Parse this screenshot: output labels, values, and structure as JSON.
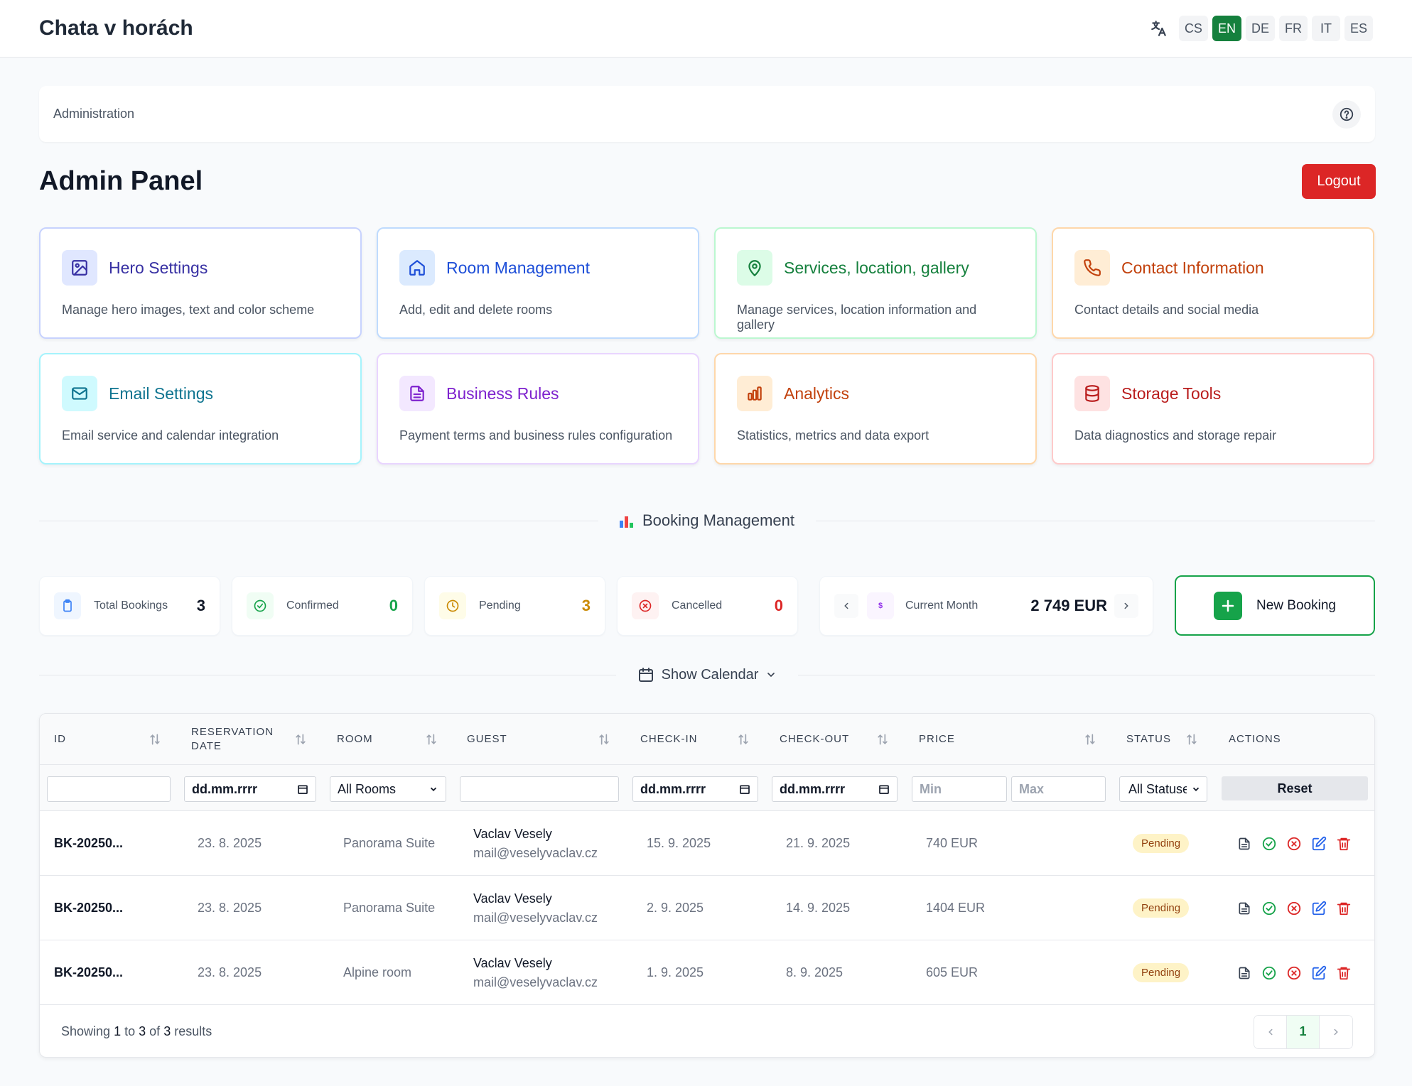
{
  "header": {
    "brand": "Chata v horách",
    "languages": [
      {
        "code": "CS",
        "active": false
      },
      {
        "code": "EN",
        "active": true
      },
      {
        "code": "DE",
        "active": false
      },
      {
        "code": "FR",
        "active": false
      },
      {
        "code": "IT",
        "active": false
      },
      {
        "code": "ES",
        "active": false
      }
    ],
    "accent_color": "#15803d"
  },
  "breadcrumb": {
    "text": "Administration"
  },
  "page": {
    "title": "Admin Panel",
    "logout_label": "Logout"
  },
  "cards": [
    {
      "title": "Hero Settings",
      "desc": "Manage hero images, text and color scheme",
      "icon": "image-icon",
      "color": "#3730a3"
    },
    {
      "title": "Room Management",
      "desc": "Add, edit and delete rooms",
      "icon": "home-icon",
      "color": "#1d4ed8"
    },
    {
      "title": "Services, location, gallery",
      "desc": "Manage services, location information and gallery",
      "icon": "map-pin-icon",
      "color": "#15803d"
    },
    {
      "title": "Contact Information",
      "desc": "Contact details and social media",
      "icon": "phone-icon",
      "color": "#c2410c"
    },
    {
      "title": "Email Settings",
      "desc": "Email service and calendar integration",
      "icon": "mail-icon",
      "color": "#0e7490"
    },
    {
      "title": "Business Rules",
      "desc": "Payment terms and business rules configuration",
      "icon": "document-icon",
      "color": "#7e22ce"
    },
    {
      "title": "Analytics",
      "desc": "Statistics, metrics and data export",
      "icon": "bar-chart-icon",
      "color": "#c2410c"
    },
    {
      "title": "Storage Tools",
      "desc": "Data diagnostics and storage repair",
      "icon": "database-icon",
      "color": "#b91c1c"
    }
  ],
  "booking_section": {
    "title": "Booking Management"
  },
  "stats": {
    "total": {
      "label": "Total Bookings",
      "value": "3"
    },
    "confirmed": {
      "label": "Confirmed",
      "value": "0"
    },
    "pending": {
      "label": "Pending",
      "value": "3"
    },
    "cancelled": {
      "label": "Cancelled",
      "value": "0"
    },
    "month": {
      "label": "Current Month",
      "value": "2 749 EUR"
    },
    "new_booking_label": "New Booking"
  },
  "calendar_toggle": {
    "label": "Show Calendar"
  },
  "table": {
    "headers": {
      "id": "ID",
      "reservation_date_1": "RESERVATION",
      "reservation_date_2": "DATE",
      "room": "ROOM",
      "guest": "GUEST",
      "checkin": "CHECK-IN",
      "checkout": "CHECK-OUT",
      "price": "PRICE",
      "status": "STATUS",
      "actions": "ACTIONS"
    },
    "filters": {
      "date_placeholder": "dd.mm.rrrr",
      "room_select": "All Rooms",
      "price_min": "Min",
      "price_max": "Max",
      "status_select": "All Statuse",
      "reset": "Reset"
    },
    "rows": [
      {
        "id": "BK-20250...",
        "reservation_date": "23. 8. 2025",
        "room": "Panorama Suite",
        "guest_name": "Vaclav Vesely",
        "guest_email": "mail@veselyvaclav.cz",
        "checkin": "15. 9. 2025",
        "checkout": "21. 9. 2025",
        "price": "740 EUR",
        "status": "Pending"
      },
      {
        "id": "BK-20250...",
        "reservation_date": "23. 8. 2025",
        "room": "Panorama Suite",
        "guest_name": "Vaclav Vesely",
        "guest_email": "mail@veselyvaclav.cz",
        "checkin": "2. 9. 2025",
        "checkout": "14. 9. 2025",
        "price": "1404 EUR",
        "status": "Pending"
      },
      {
        "id": "BK-20250...",
        "reservation_date": "23. 8. 2025",
        "room": "Alpine room",
        "guest_name": "Vaclav Vesely",
        "guest_email": "mail@veselyvaclav.cz",
        "checkin": "1. 9. 2025",
        "checkout": "8. 9. 2025",
        "price": "605 EUR",
        "status": "Pending"
      }
    ],
    "footer": {
      "showing_prefix": "Showing",
      "from": "1",
      "to_word": "to",
      "to": "3",
      "of_word": "of",
      "total": "3",
      "results_word": "results",
      "current_page": "1"
    }
  }
}
